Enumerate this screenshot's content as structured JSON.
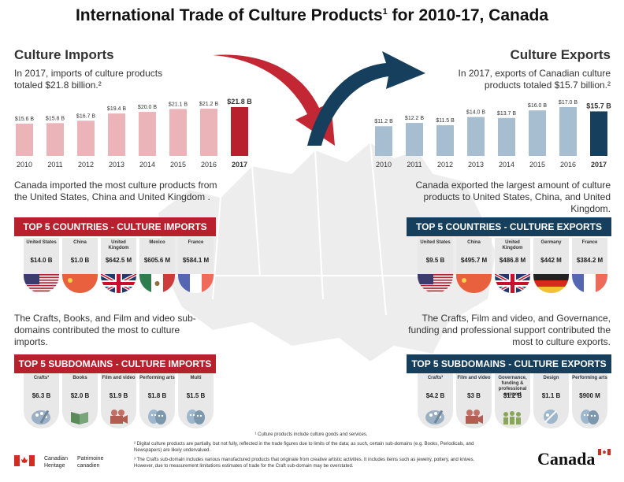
{
  "title": "International Trade of Culture Products",
  "title_sup": "1",
  "title_rest": " for 2010-17, Canada",
  "imports": {
    "heading": "Culture Imports",
    "intro": "In 2017, imports of culture products totaled $21.8 billion.²",
    "countries_text": "Canada imported the most culture products from the United States, China and United Kingdom .",
    "countries_banner": "TOP 5 COUNTRIES - CULTURE IMPORTS",
    "countries": [
      {
        "name": "United States",
        "value": "$14.0 B",
        "flag": "us"
      },
      {
        "name": "China",
        "value": "$1.0 B",
        "flag": "cn"
      },
      {
        "name": "United Kingdom",
        "value": "$642.5 M",
        "flag": "uk"
      },
      {
        "name": "Mexico",
        "value": "$605.6 M",
        "flag": "mx"
      },
      {
        "name": "France",
        "value": "$584.1 M",
        "flag": "fr"
      }
    ],
    "subdomains_text": "The Crafts, Books, and Film and video sub-domains contributed the most to culture imports.",
    "subdomains_banner": "TOP 5 SUBDOMAINS - CULTURE IMPORTS",
    "subdomains": [
      {
        "name": "Crafts³",
        "value": "$6.3 B",
        "icon": "palette-icon"
      },
      {
        "name": "Books",
        "value": "$2.0 B",
        "icon": "book-icon"
      },
      {
        "name": "Film and video",
        "value": "$1.9 B",
        "icon": "camera-icon"
      },
      {
        "name": "Performing arts",
        "value": "$1.8 B",
        "icon": "masks-icon"
      },
      {
        "name": "Multi",
        "value": "$1.5 B",
        "icon": "masks-icon"
      }
    ]
  },
  "exports": {
    "heading": "Culture Exports",
    "intro": "In 2017, exports of Canadian culture products totaled $15.7 billion.²",
    "countries_text": "Canada exported the largest amount of culture products to United States, China, and United Kingdom.",
    "countries_banner": "TOP 5 COUNTRIES - CULTURE EXPORTS",
    "countries": [
      {
        "name": "United States",
        "value": "$9.5 B",
        "flag": "us"
      },
      {
        "name": "China",
        "value": "$495.7 M",
        "flag": "cn"
      },
      {
        "name": "United Kingdom",
        "value": "$486.8 M",
        "flag": "uk"
      },
      {
        "name": "Germany",
        "value": "$442 M",
        "flag": "de"
      },
      {
        "name": "France",
        "value": "$384.2 M",
        "flag": "fr"
      }
    ],
    "subdomains_text": "The Crafts, Film and video, and Governance, funding and professional support contributed the most to culture exports.",
    "subdomains_banner": "TOP 5 SUBDOMAINS - CULTURE EXPORTS",
    "subdomains": [
      {
        "name": "Crafts³",
        "value": "$4.2 B",
        "icon": "palette-icon"
      },
      {
        "name": "Film and video",
        "value": "$3 B",
        "icon": "camera-icon"
      },
      {
        "name": "Governance, funding & professional support",
        "value": "$1.2 B",
        "icon": "people-icon"
      },
      {
        "name": "Design",
        "value": "$1.1 B",
        "icon": "design-icon"
      },
      {
        "name": "Performing arts",
        "value": "$900 M",
        "icon": "masks-icon"
      }
    ]
  },
  "chart_data": [
    {
      "type": "bar",
      "categories": [
        "2010",
        "2011",
        "2012",
        "2013",
        "2014",
        "2015",
        "2016",
        "2017"
      ],
      "values": [
        15.6,
        15.8,
        16.7,
        19.4,
        20.0,
        21.1,
        21.2,
        21.8
      ],
      "labels": [
        "$15.6 B",
        "$15.8 B",
        "$16.7 B",
        "$19.4 B",
        "$20.0 B",
        "$21.1 B",
        "$21.2 B",
        "$21.8 B"
      ],
      "colors": {
        "bar": "#eab4b8",
        "highlight": "#b8202e"
      }
    },
    {
      "type": "bar",
      "categories": [
        "2010",
        "2011",
        "2012",
        "2013",
        "2014",
        "2015",
        "2016",
        "2017"
      ],
      "values": [
        11.2,
        12.2,
        11.5,
        14.0,
        13.7,
        16.0,
        17.0,
        15.7
      ],
      "labels": [
        "$11.2 B",
        "$12.2 B",
        "$11.5 B",
        "$14.0 B",
        "$13.7 B",
        "$16.0 B",
        "$17.0 B",
        "$15.7 B"
      ],
      "colors": {
        "bar": "#a7bdd0",
        "highlight": "#163f5e"
      }
    }
  ],
  "footnotes": {
    "f1": "¹ Culture products include culture goods and services.",
    "f2": "² Digital culture products are partially, but not fully, reflected in the trade figures due to limits of the data; as such, certain sub-domains (e.g. Books, Periodicals, and Newspapers) are likely undervalued.",
    "f3": "³ The Crafts sub-domain includes various manufactured products that originate from creative artistic activities. It includes items such as jewelry, pottery, and knives. However, due to measurement limitations estimates of trade for the Craft sub-domain may be overstated."
  },
  "gov": {
    "en1": "Canadian",
    "en2": "Heritage",
    "fr1": "Patrimoine",
    "fr2": "canadien",
    "wordmark": "Canada"
  },
  "colors": {
    "red": "#b8202e",
    "blue": "#163f5e",
    "map": "#ededed"
  }
}
